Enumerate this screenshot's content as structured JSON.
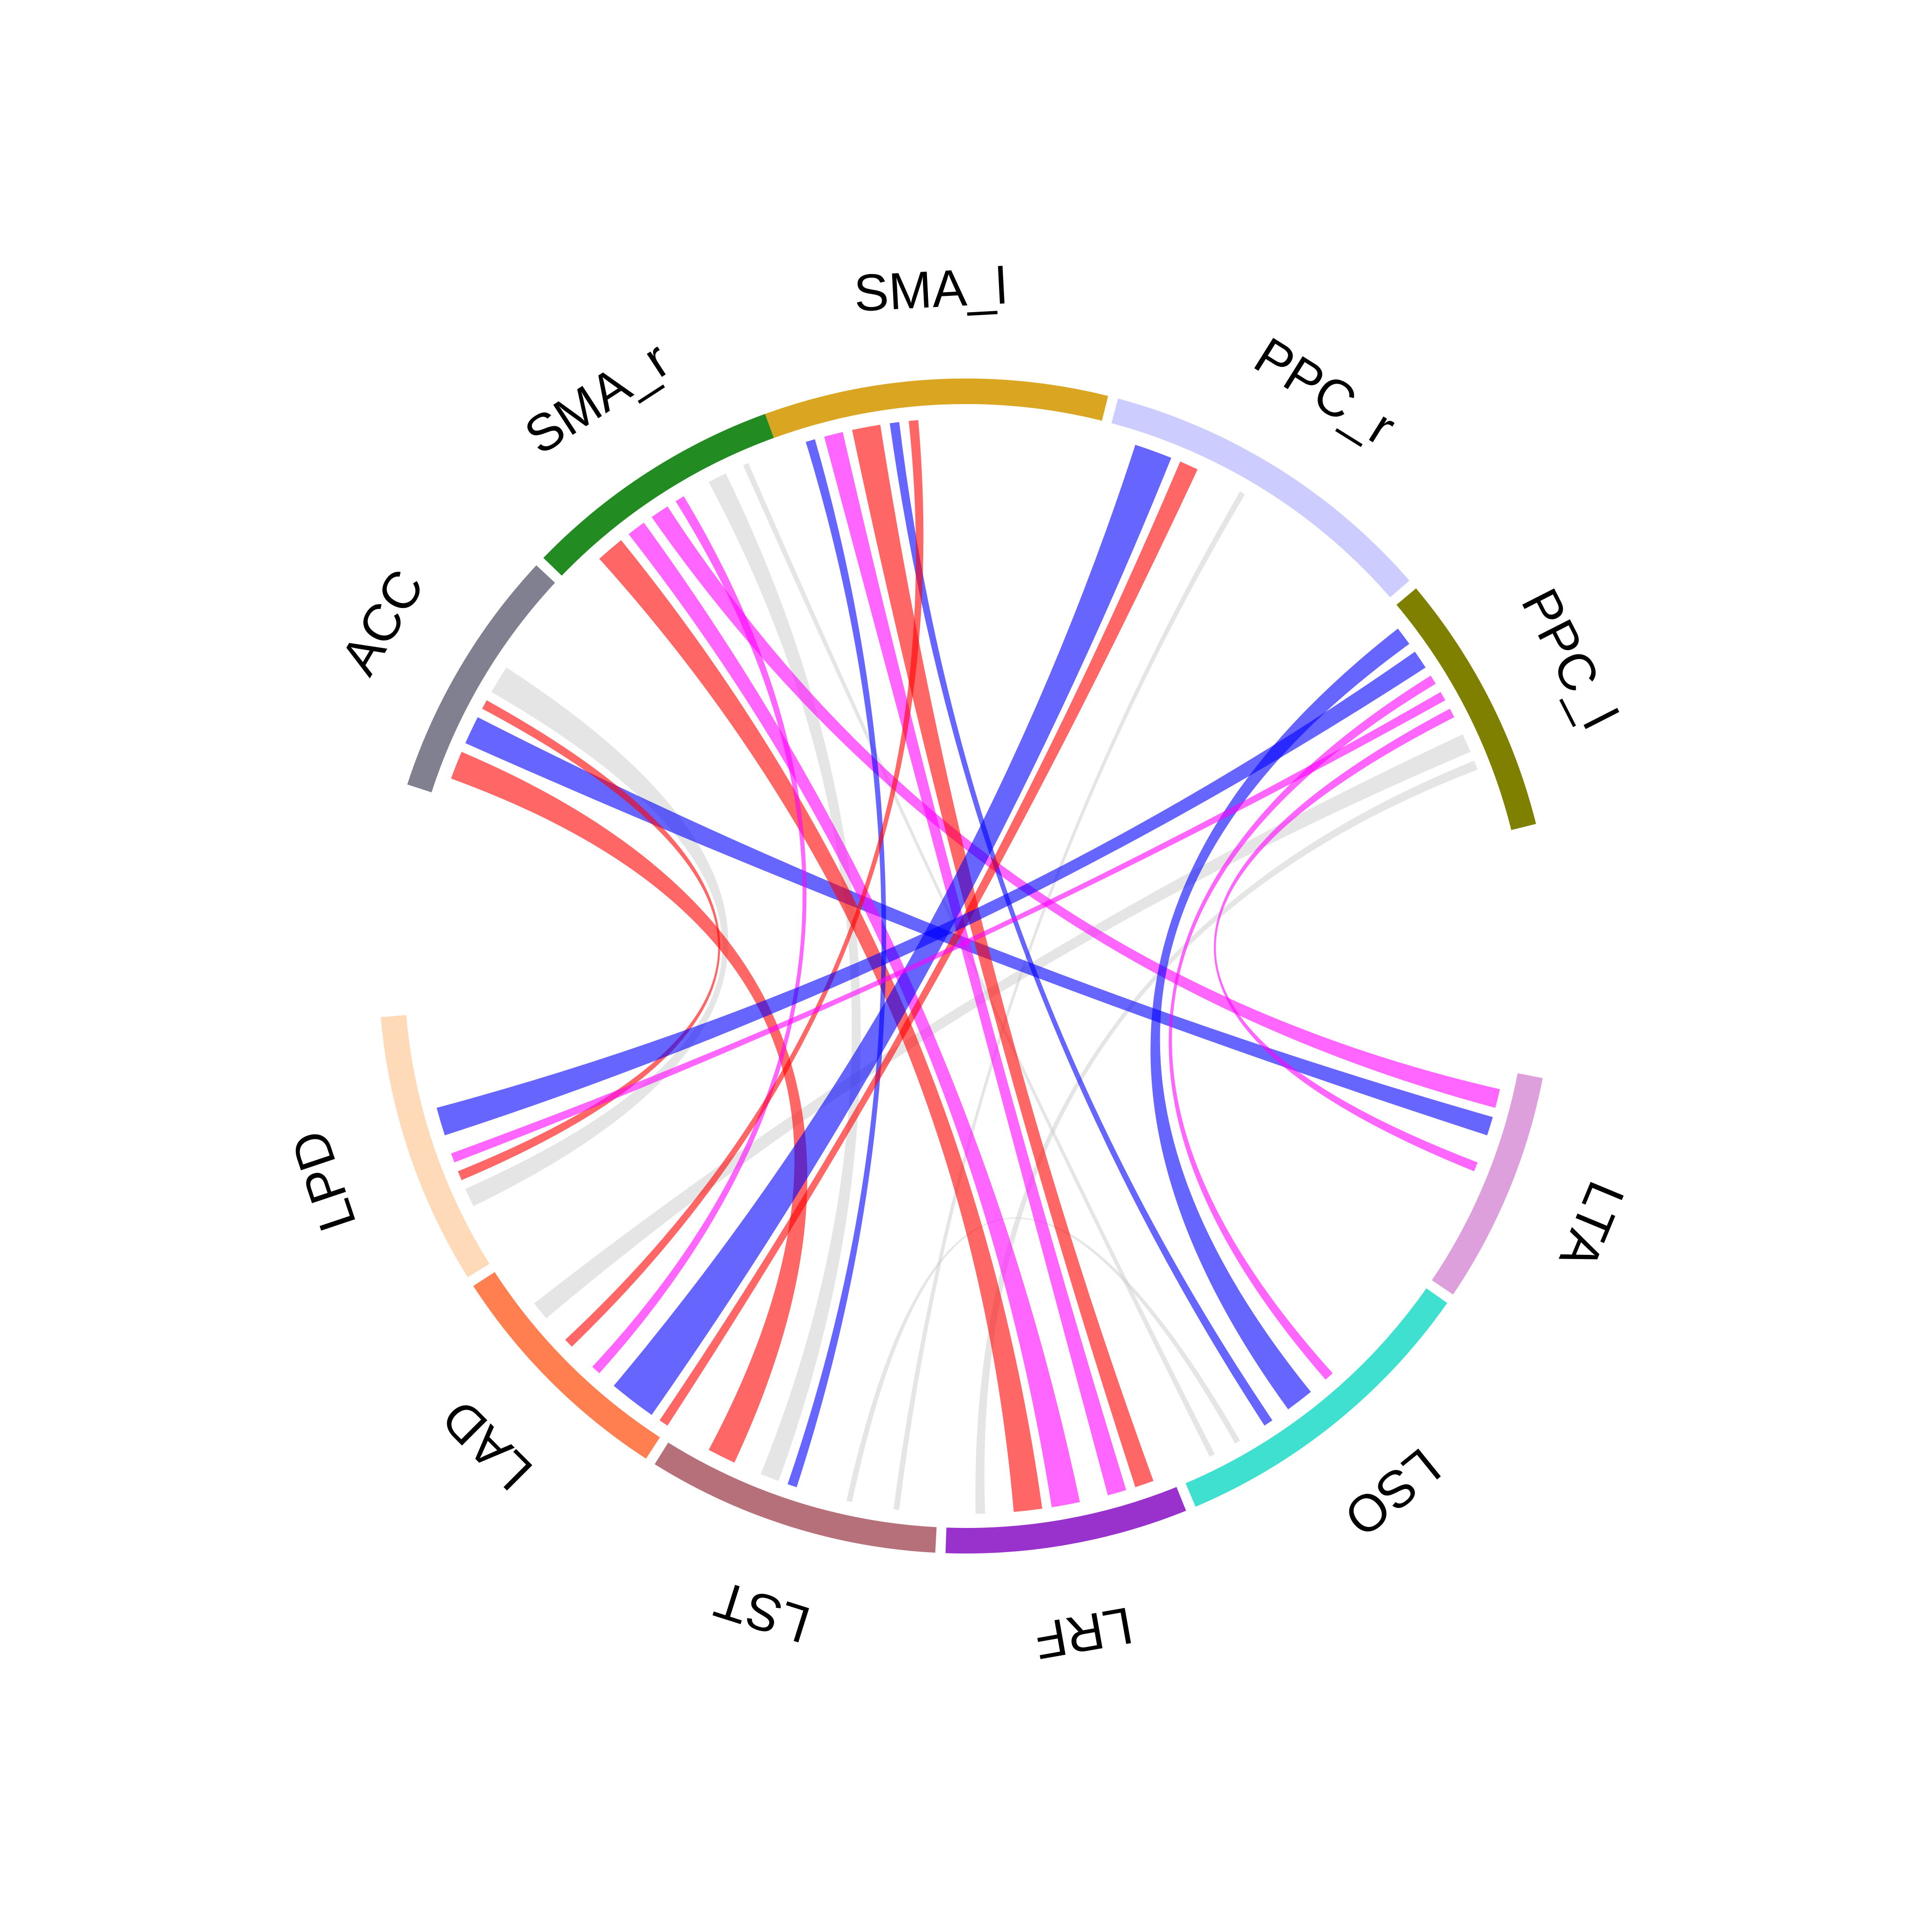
{
  "diagram": {
    "type": "chord",
    "sectors": [
      {
        "label": "SMA_l",
        "color": "#DAA520",
        "start": -20,
        "end": 14
      },
      {
        "label": "PPC_r",
        "color": "#CCCCFF",
        "start": 15,
        "end": 49
      },
      {
        "label": "PPC_l",
        "color": "#808000",
        "start": 50,
        "end": 76
      },
      {
        "label": "LTA",
        "color": "#DDA0DD",
        "start": 101,
        "end": 124
      },
      {
        "label": "LSO",
        "color": "#40E0D0",
        "start": 125,
        "end": 157
      },
      {
        "label": "LRF",
        "color": "#9932CC",
        "start": 158,
        "end": 182
      },
      {
        "label": "LST",
        "color": "#B5707A",
        "start": 183,
        "end": 212
      },
      {
        "label": "LAD",
        "color": "#FF7F50",
        "start": 213,
        "end": 237
      },
      {
        "label": "LPD",
        "color": "#FFDAB9",
        "start": 238,
        "end": 265
      },
      {
        "label": "ACC",
        "color": "#808090",
        "start": 288,
        "end": 313
      },
      {
        "label": "SMA_r",
        "color": "#228B22",
        "start": 314,
        "end": 340
      }
    ],
    "links": [
      {
        "from": "ACC",
        "to": "LST",
        "a1": 290,
        "a2": 293,
        "b1": 205,
        "b2": 208,
        "color": "#FF0000",
        "opacity": 0.6
      },
      {
        "from": "ACC",
        "to": "LTA",
        "a1": 294,
        "a2": 297,
        "b1": 106,
        "b2": 108,
        "color": "#0000FF",
        "opacity": 0.6
      },
      {
        "from": "ACC",
        "to": "LPD",
        "a1": 298,
        "a2": 299,
        "b1": 247,
        "b2": 248,
        "color": "#FF0000",
        "opacity": 0.6
      },
      {
        "from": "SMA_r",
        "to": "LRF",
        "a1": 318,
        "a2": 321,
        "b1": 172,
        "b2": 175,
        "color": "#FF0000",
        "opacity": 0.6
      },
      {
        "from": "SMA_r",
        "to": "LRF",
        "a1": 322,
        "a2": 324,
        "b1": 168,
        "b2": 171,
        "color": "#FF00FF",
        "opacity": 0.6
      },
      {
        "from": "SMA_r",
        "to": "LTA",
        "a1": 325,
        "a2": 327,
        "b1": 103,
        "b2": 105,
        "color": "#FF00FF",
        "opacity": 0.6
      },
      {
        "from": "SMA_r",
        "to": "LAD",
        "a1": 328,
        "a2": 329,
        "b1": 222,
        "b2": 223,
        "color": "#FF00FF",
        "opacity": 0.6
      },
      {
        "from": "SMA_l",
        "to": "LST",
        "a1": -17,
        "a2": -16,
        "b1": 198,
        "b2": 199,
        "color": "#0000FF",
        "opacity": 0.6
      },
      {
        "from": "SMA_l",
        "to": "LRF",
        "a1": -15,
        "a2": -13,
        "b1": 163,
        "b2": 165,
        "color": "#FF00FF",
        "opacity": 0.6
      },
      {
        "from": "SMA_l",
        "to": "LRF",
        "a1": -12,
        "a2": -9,
        "b1": 160,
        "b2": 162,
        "color": "#FF0000",
        "opacity": 0.6
      },
      {
        "from": "SMA_l",
        "to": "LSO",
        "a1": -8,
        "a2": -7,
        "b1": 146,
        "b2": 147,
        "color": "#0000FF",
        "opacity": 0.6
      },
      {
        "from": "SMA_l",
        "to": "LAD",
        "a1": -6,
        "a2": -5,
        "b1": 226,
        "b2": 227,
        "color": "#FF0000",
        "opacity": 0.6
      },
      {
        "from": "PPC_r",
        "to": "LAD",
        "a1": 18,
        "a2": 22,
        "b1": 215,
        "b2": 220,
        "color": "#0000FF",
        "opacity": 0.6
      },
      {
        "from": "PPC_r",
        "to": "LAD",
        "a1": 23,
        "a2": 25,
        "b1": 213,
        "b2": 214,
        "color": "#FF0000",
        "opacity": 0.6
      },
      {
        "from": "PPC_l",
        "to": "LSO",
        "a1": 52,
        "a2": 54,
        "b1": 141,
        "b2": 144,
        "color": "#0000FF",
        "opacity": 0.6
      },
      {
        "from": "PPC_l",
        "to": "LPD",
        "a1": 55,
        "a2": 57,
        "b1": 252,
        "b2": 255,
        "color": "#0000FF",
        "opacity": 0.6
      },
      {
        "from": "PPC_l",
        "to": "LSO",
        "a1": 58,
        "a2": 59,
        "b1": 138,
        "b2": 139,
        "color": "#FF00FF",
        "opacity": 0.6
      },
      {
        "from": "PPC_l",
        "to": "LPD",
        "a1": 60,
        "a2": 61,
        "b1": 249,
        "b2": 250,
        "color": "#FF00FF",
        "opacity": 0.6
      },
      {
        "from": "PPC_l",
        "to": "LTA",
        "a1": 62,
        "a2": 63,
        "b1": 111,
        "b2": 112,
        "color": "#FF00FF",
        "opacity": 0.6
      },
      {
        "from": "ACC",
        "to": "LPD",
        "a1": 300,
        "a2": 303,
        "b1": 244,
        "b2": 246,
        "color": "#CCCCCC",
        "opacity": 0.5
      },
      {
        "from": "SMA_r",
        "to": "LST",
        "a1": 332,
        "a2": 334,
        "b1": 200,
        "b2": 202,
        "color": "#CCCCCC",
        "opacity": 0.5
      },
      {
        "from": "PPC_l",
        "to": "LAD",
        "a1": 65,
        "a2": 67,
        "b1": 230,
        "b2": 232,
        "color": "#CCCCCC",
        "opacity": 0.5
      },
      {
        "from": "PPC_l",
        "to": "LRF",
        "a1": 68,
        "a2": 69,
        "b1": 178,
        "b2": 179,
        "color": "#CCCCCC",
        "opacity": 0.5
      },
      {
        "from": "LSO",
        "to": "LST",
        "a1": 150,
        "a2": 150.6,
        "b1": 192,
        "b2": 192.6,
        "color": "#CCCCCC",
        "opacity": 0.5
      },
      {
        "from": "PPC_r",
        "to": "LST",
        "a1": 30,
        "a2": 30.6,
        "b1": 187,
        "b2": 187.6,
        "color": "#CCCCCC",
        "opacity": 0.5
      },
      {
        "from": "SMA_r",
        "to": "LSO",
        "a1": 336,
        "a2": 336.6,
        "b1": 153,
        "b2": 153.6,
        "color": "#CCCCCC",
        "opacity": 0.5
      }
    ]
  }
}
